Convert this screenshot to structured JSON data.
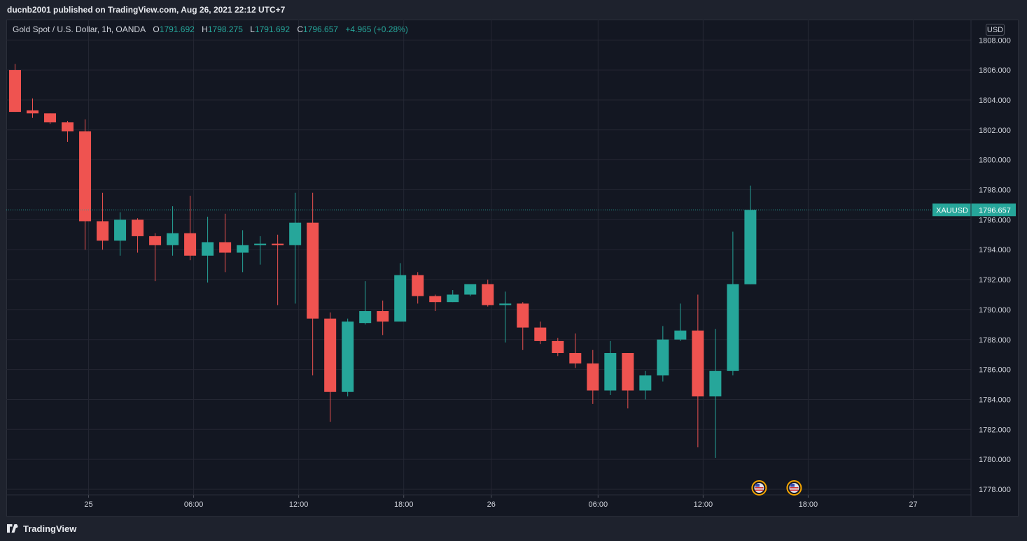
{
  "header": {
    "published_by": "ducnb2001 published on TradingView.com, Aug 26, 2021 22:12 UTC+7"
  },
  "legend": {
    "symbol_title": "Gold Spot / U.S. Dollar, 1h, OANDA",
    "open_label": "O",
    "open_value": "1791.692",
    "high_label": "H",
    "high_value": "1798.275",
    "low_label": "L",
    "low_value": "1791.692",
    "close_label": "C",
    "close_value": "1796.657",
    "change": "+4.965 (+0.28%)"
  },
  "price_axis": {
    "currency": "USD",
    "last_price_symbol": "XAUUSD",
    "last_price": "1796.657"
  },
  "footer": {
    "brand": "TradingView"
  },
  "colors": {
    "background": "#131722",
    "up": "#26a69a",
    "down": "#ef5350",
    "grid": "#242733",
    "axis_text": "#d1d4dc"
  },
  "icons": [
    "us-flag-event-icon",
    "us-flag-event-icon",
    "tradingview-logo-icon"
  ],
  "chart_data": {
    "type": "candlestick",
    "interval": "1h",
    "ylim": [
      1777.0,
      1809.0
    ],
    "y_ticks": [
      "1778.000",
      "1780.000",
      "1782.000",
      "1784.000",
      "1786.000",
      "1788.000",
      "1790.000",
      "1792.000",
      "1794.000",
      "1796.000",
      "1798.000",
      "1800.000",
      "1802.000",
      "1804.000",
      "1806.000",
      "1808.000"
    ],
    "x_ticks": [
      {
        "label": "25",
        "index": 4.2
      },
      {
        "label": "06:00",
        "index": 10.2
      },
      {
        "label": "12:00",
        "index": 16.2
      },
      {
        "label": "18:00",
        "index": 22.2
      },
      {
        "label": "26",
        "index": 27.2
      },
      {
        "label": "06:00",
        "index": 33.3
      },
      {
        "label": "12:00",
        "index": 39.3
      },
      {
        "label": "18:00",
        "index": 45.3
      },
      {
        "label": "27",
        "index": 51.3
      }
    ],
    "x_range": [
      -0.5,
      54.6
    ],
    "event_markers": [
      {
        "icon": "us-flag-event-icon",
        "index": 42.5
      },
      {
        "icon": "us-flag-event-icon",
        "index": 44.5
      }
    ],
    "candles": [
      {
        "o": 1806.0,
        "h": 1806.4,
        "l": 1803.2,
        "c": 1803.2
      },
      {
        "o": 1803.3,
        "h": 1804.1,
        "l": 1802.8,
        "c": 1803.1
      },
      {
        "o": 1803.1,
        "h": 1803.1,
        "l": 1802.4,
        "c": 1802.5
      },
      {
        "o": 1802.5,
        "h": 1802.6,
        "l": 1801.2,
        "c": 1801.9
      },
      {
        "o": 1801.9,
        "h": 1802.7,
        "l": 1794.0,
        "c": 1795.9
      },
      {
        "o": 1795.9,
        "h": 1797.8,
        "l": 1794.0,
        "c": 1794.6
      },
      {
        "o": 1794.6,
        "h": 1796.5,
        "l": 1793.6,
        "c": 1796.0
      },
      {
        "o": 1796.0,
        "h": 1796.1,
        "l": 1793.8,
        "c": 1794.9
      },
      {
        "o": 1794.9,
        "h": 1795.1,
        "l": 1791.9,
        "c": 1794.3
      },
      {
        "o": 1794.3,
        "h": 1796.9,
        "l": 1793.6,
        "c": 1795.1
      },
      {
        "o": 1795.1,
        "h": 1797.6,
        "l": 1793.3,
        "c": 1793.6
      },
      {
        "o": 1793.6,
        "h": 1796.2,
        "l": 1791.8,
        "c": 1794.5
      },
      {
        "o": 1794.5,
        "h": 1796.4,
        "l": 1792.5,
        "c": 1793.8
      },
      {
        "o": 1793.8,
        "h": 1795.3,
        "l": 1792.5,
        "c": 1794.3
      },
      {
        "o": 1794.3,
        "h": 1794.9,
        "l": 1793.0,
        "c": 1794.4
      },
      {
        "o": 1794.4,
        "h": 1795.0,
        "l": 1790.3,
        "c": 1794.3
      },
      {
        "o": 1794.3,
        "h": 1797.8,
        "l": 1790.4,
        "c": 1795.8
      },
      {
        "o": 1795.8,
        "h": 1797.8,
        "l": 1785.6,
        "c": 1789.4
      },
      {
        "o": 1789.4,
        "h": 1789.8,
        "l": 1782.5,
        "c": 1784.5
      },
      {
        "o": 1784.5,
        "h": 1789.4,
        "l": 1784.2,
        "c": 1789.2
      },
      {
        "o": 1789.1,
        "h": 1791.9,
        "l": 1789.0,
        "c": 1789.9
      },
      {
        "o": 1789.9,
        "h": 1790.6,
        "l": 1788.3,
        "c": 1789.2
      },
      {
        "o": 1789.2,
        "h": 1793.1,
        "l": 1789.2,
        "c": 1792.3
      },
      {
        "o": 1792.3,
        "h": 1792.5,
        "l": 1790.4,
        "c": 1790.9
      },
      {
        "o": 1790.9,
        "h": 1791.0,
        "l": 1789.9,
        "c": 1790.5
      },
      {
        "o": 1790.5,
        "h": 1791.3,
        "l": 1790.5,
        "c": 1791.0
      },
      {
        "o": 1791.0,
        "h": 1791.7,
        "l": 1790.9,
        "c": 1791.7
      },
      {
        "o": 1791.7,
        "h": 1792.0,
        "l": 1790.2,
        "c": 1790.3
      },
      {
        "o": 1790.3,
        "h": 1791.2,
        "l": 1787.8,
        "c": 1790.4
      },
      {
        "o": 1790.4,
        "h": 1790.5,
        "l": 1787.3,
        "c": 1788.8
      },
      {
        "o": 1788.8,
        "h": 1789.2,
        "l": 1787.7,
        "c": 1787.9
      },
      {
        "o": 1787.9,
        "h": 1788.1,
        "l": 1786.9,
        "c": 1787.1
      },
      {
        "o": 1787.1,
        "h": 1788.4,
        "l": 1786.1,
        "c": 1786.4
      },
      {
        "o": 1786.4,
        "h": 1787.3,
        "l": 1783.7,
        "c": 1784.6
      },
      {
        "o": 1784.6,
        "h": 1787.9,
        "l": 1784.3,
        "c": 1787.1
      },
      {
        "o": 1787.1,
        "h": 1787.1,
        "l": 1783.4,
        "c": 1784.6
      },
      {
        "o": 1784.6,
        "h": 1785.9,
        "l": 1784.0,
        "c": 1785.6
      },
      {
        "o": 1785.6,
        "h": 1788.9,
        "l": 1785.2,
        "c": 1788.0
      },
      {
        "o": 1788.0,
        "h": 1790.4,
        "l": 1787.9,
        "c": 1788.6
      },
      {
        "o": 1788.6,
        "h": 1791.0,
        "l": 1780.8,
        "c": 1784.2
      },
      {
        "o": 1784.2,
        "h": 1788.7,
        "l": 1780.1,
        "c": 1785.9
      },
      {
        "o": 1785.9,
        "h": 1795.2,
        "l": 1785.6,
        "c": 1791.7
      },
      {
        "o": 1791.692,
        "h": 1798.275,
        "l": 1791.692,
        "c": 1796.657
      }
    ]
  }
}
